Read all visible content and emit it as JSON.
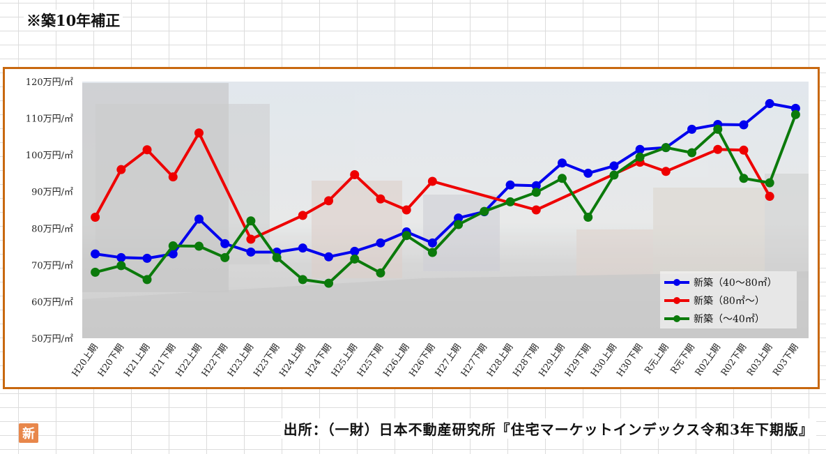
{
  "note": "※築10年補正",
  "source": "出所：（一財）日本不動産研究所『住宅マーケットインデックス令和3年下期版』",
  "logo_char": "新",
  "chart_data": {
    "type": "line",
    "categories": [
      "H20上期",
      "H20下期",
      "H21上期",
      "H21下期",
      "H22上期",
      "H22下期",
      "H23上期",
      "H23下期",
      "H24上期",
      "H24下期",
      "H25上期",
      "H25下期",
      "H26上期",
      "H26下期",
      "H27上期",
      "H27下期",
      "H28上期",
      "H28下期",
      "H29上期",
      "H29下期",
      "H30上期",
      "H30下期",
      "R元上期",
      "R元下期",
      "R02上期",
      "R02下期",
      "R03上期",
      "R03下期"
    ],
    "ylim": [
      50,
      120
    ],
    "yticks": [
      50,
      60,
      70,
      80,
      90,
      100,
      110,
      120
    ],
    "ytick_labels": [
      "50万円/㎡",
      "60万円/㎡",
      "70万円/㎡",
      "80万円/㎡",
      "90万円/㎡",
      "100万円/㎡",
      "110万円/㎡",
      "120万円/㎡"
    ],
    "legend_position": "bottom-right",
    "series": [
      {
        "name": "新築（40～80㎡）",
        "color": "#0000ee",
        "values": [
          73,
          72,
          71.8,
          73,
          82.5,
          75.8,
          73.5,
          73.5,
          74.6,
          72.2,
          73.7,
          76,
          79,
          76,
          82.8,
          84.5,
          91.8,
          91.6,
          97.8,
          95,
          97,
          101.5,
          102,
          107,
          108.3,
          108.2,
          114,
          112.7
        ]
      },
      {
        "name": "新築（80㎡～）",
        "color": "#ee0000",
        "values": [
          83,
          96,
          101.4,
          94,
          106,
          null,
          77,
          null,
          83.5,
          87.5,
          94.6,
          88,
          85,
          92.8,
          null,
          null,
          null,
          85,
          null,
          null,
          null,
          98,
          95.5,
          null,
          101.5,
          101.3,
          88.7,
          null
        ]
      },
      {
        "name": "新築（～40㎡）",
        "color": "#0b7a0b",
        "values": [
          68,
          69.8,
          66,
          75.2,
          75.1,
          72,
          82,
          72,
          66,
          65,
          71.6,
          67.8,
          78,
          73.4,
          81,
          84.6,
          87.2,
          89.8,
          93.6,
          83,
          94.5,
          99.4,
          102,
          100.6,
          107,
          93.6,
          92.4,
          111
        ]
      }
    ]
  }
}
